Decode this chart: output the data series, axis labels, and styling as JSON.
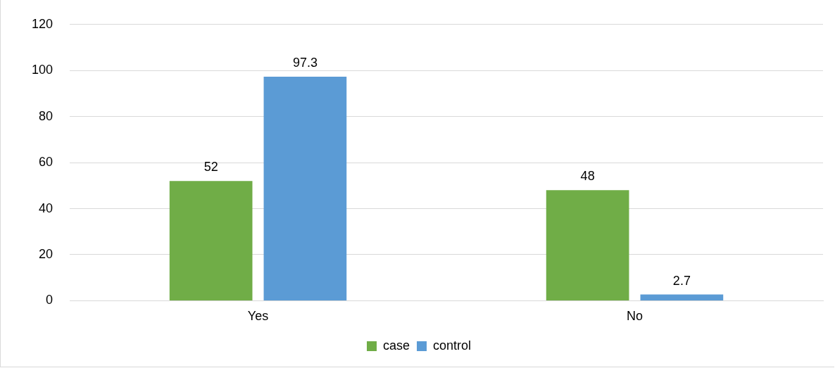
{
  "chart_data": {
    "type": "bar",
    "categories": [
      "Yes",
      "No"
    ],
    "series": [
      {
        "name": "case",
        "color": "#70ad47",
        "values": [
          52,
          48
        ]
      },
      {
        "name": "control",
        "color": "#5b9bd5",
        "values": [
          97.3,
          2.7
        ]
      }
    ],
    "ylim": [
      0,
      120
    ],
    "yticks": [
      0,
      20,
      40,
      60,
      80,
      100,
      120
    ],
    "grid": "y",
    "legend": "bottom",
    "data_labels": true
  }
}
